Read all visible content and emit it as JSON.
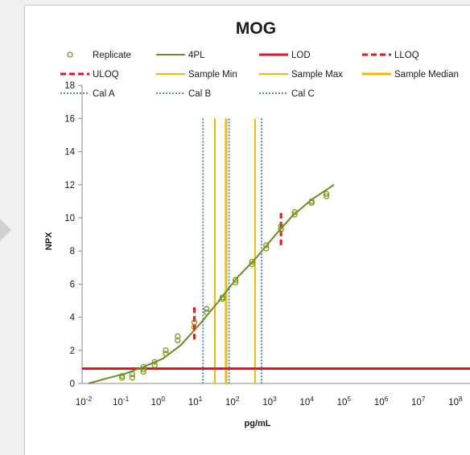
{
  "chart_data": {
    "type": "scatter",
    "title": "MOG",
    "xlabel": "pg/mL",
    "ylabel": "NPX",
    "x_scale": "log",
    "xlim_exponents": [
      -2,
      8
    ],
    "ylim": [
      0,
      18
    ],
    "y_ticks": [
      0,
      2,
      4,
      6,
      8,
      10,
      12,
      14,
      16,
      18
    ],
    "x_tick_exponents": [
      -2,
      -1,
      0,
      1,
      2,
      3,
      4,
      5,
      6,
      7,
      8
    ],
    "x_tick_base": "10",
    "grid": false,
    "legend_placement": "top",
    "legend": [
      {
        "label": "Replicate",
        "kind": "marker",
        "color": "#7a9a1a"
      },
      {
        "label": "4PL",
        "kind": "solid",
        "color": "#6b8e23"
      },
      {
        "label": "LOD",
        "kind": "solid-thick",
        "color": "#e8141c"
      },
      {
        "label": "LLOQ",
        "kind": "dashed",
        "color": "#e8141c"
      },
      {
        "label": "ULOQ",
        "kind": "dashed",
        "color": "#e8141c"
      },
      {
        "label": "Sample Min",
        "kind": "solid",
        "color": "#f5b800"
      },
      {
        "label": "Sample Max",
        "kind": "solid",
        "color": "#f5b800"
      },
      {
        "label": "Sample Median",
        "kind": "solid-thick",
        "color": "#f5b800"
      },
      {
        "label": "Cal A",
        "kind": "dotted",
        "color": "#3d7fc7"
      },
      {
        "label": "Cal B",
        "kind": "dotted",
        "color": "#3d7fc7"
      },
      {
        "label": "Cal C",
        "kind": "dotted",
        "color": "#3d7fc7"
      }
    ],
    "replicates": [
      {
        "x": 0.08,
        "y": 0.35
      },
      {
        "x": 0.08,
        "y": 0.45
      },
      {
        "x": 0.15,
        "y": 0.35
      },
      {
        "x": 0.15,
        "y": 0.55
      },
      {
        "x": 0.3,
        "y": 0.7
      },
      {
        "x": 0.3,
        "y": 0.85
      },
      {
        "x": 0.3,
        "y": 1.0
      },
      {
        "x": 0.6,
        "y": 1.1
      },
      {
        "x": 0.6,
        "y": 1.3
      },
      {
        "x": 1.2,
        "y": 1.8
      },
      {
        "x": 1.2,
        "y": 2.0
      },
      {
        "x": 2.5,
        "y": 2.6
      },
      {
        "x": 2.5,
        "y": 2.85
      },
      {
        "x": 7,
        "y": 3.4
      },
      {
        "x": 7,
        "y": 3.7
      },
      {
        "x": 15,
        "y": 4.3
      },
      {
        "x": 15,
        "y": 4.5
      },
      {
        "x": 40,
        "y": 5.1
      },
      {
        "x": 40,
        "y": 5.2
      },
      {
        "x": 90,
        "y": 6.1
      },
      {
        "x": 90,
        "y": 6.25
      },
      {
        "x": 250,
        "y": 7.2
      },
      {
        "x": 250,
        "y": 7.35
      },
      {
        "x": 600,
        "y": 8.15
      },
      {
        "x": 600,
        "y": 8.35
      },
      {
        "x": 1500,
        "y": 9.3
      },
      {
        "x": 1500,
        "y": 9.5
      },
      {
        "x": 3500,
        "y": 10.2
      },
      {
        "x": 3500,
        "y": 10.35
      },
      {
        "x": 10000,
        "y": 10.9
      },
      {
        "x": 10000,
        "y": 11.0
      },
      {
        "x": 25000,
        "y": 11.3
      },
      {
        "x": 25000,
        "y": 11.45
      }
    ],
    "fit_4pl": {
      "x": [
        0.01,
        0.03,
        0.1,
        0.3,
        1,
        3,
        10,
        30,
        100,
        300,
        1000,
        3000,
        10000,
        40000
      ],
      "y": [
        0.0,
        0.3,
        0.6,
        1.0,
        1.5,
        2.3,
        3.6,
        4.9,
        6.4,
        7.5,
        8.9,
        10.1,
        11.1,
        12.0
      ]
    },
    "lod": 0.9,
    "lloq": {
      "x": 7,
      "y_range": [
        2.5,
        4.6
      ]
    },
    "uloq": {
      "x": 1500,
      "y_range": [
        8.2,
        10.3
      ]
    },
    "sample_min": 25,
    "sample_max": 300,
    "sample_median": 50,
    "cal_a": 12,
    "cal_b": 60,
    "cal_c": 450,
    "vline_top": 16
  }
}
